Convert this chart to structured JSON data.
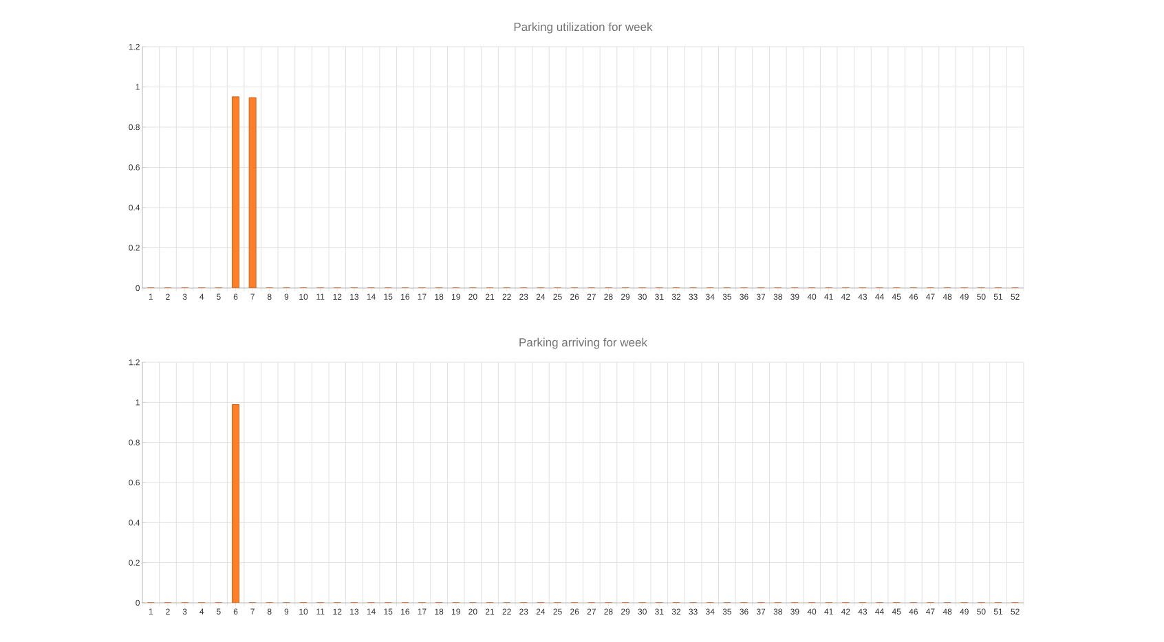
{
  "chart_data": [
    {
      "type": "bar",
      "title": "Parking utilization for week",
      "categories": [
        "1",
        "2",
        "3",
        "4",
        "5",
        "6",
        "7",
        "8",
        "9",
        "10",
        "11",
        "12",
        "13",
        "14",
        "15",
        "16",
        "17",
        "18",
        "19",
        "20",
        "21",
        "22",
        "23",
        "24",
        "25",
        "26",
        "27",
        "28",
        "29",
        "30",
        "31",
        "32",
        "33",
        "34",
        "35",
        "36",
        "37",
        "38",
        "39",
        "40",
        "41",
        "42",
        "43",
        "44",
        "45",
        "46",
        "47",
        "48",
        "49",
        "50",
        "51",
        "52"
      ],
      "values": [
        0,
        0,
        0,
        0,
        0,
        0.951,
        0.947,
        0,
        0,
        0,
        0,
        0,
        0,
        0,
        0,
        0,
        0,
        0,
        0,
        0,
        0,
        0,
        0,
        0,
        0,
        0,
        0,
        0,
        0,
        0,
        0,
        0,
        0,
        0,
        0,
        0,
        0,
        0,
        0,
        0,
        0,
        0,
        0,
        0,
        0,
        0,
        0,
        0,
        0,
        0,
        0,
        0
      ],
      "color": "#ff7f27",
      "ylim": [
        0,
        1.2
      ],
      "yticks": [
        0,
        0.2,
        0.4,
        0.6,
        0.8,
        1,
        1.2
      ],
      "grid": true
    },
    {
      "type": "bar",
      "title": "Parking arriving for week",
      "categories": [
        "1",
        "2",
        "3",
        "4",
        "5",
        "6",
        "7",
        "8",
        "9",
        "10",
        "11",
        "12",
        "13",
        "14",
        "15",
        "16",
        "17",
        "18",
        "19",
        "20",
        "21",
        "22",
        "23",
        "24",
        "25",
        "26",
        "27",
        "28",
        "29",
        "30",
        "31",
        "32",
        "33",
        "34",
        "35",
        "36",
        "37",
        "38",
        "39",
        "40",
        "41",
        "42",
        "43",
        "44",
        "45",
        "46",
        "47",
        "48",
        "49",
        "50",
        "51",
        "52"
      ],
      "values": [
        0,
        0,
        0,
        0,
        0,
        0.989,
        0,
        0,
        0,
        0,
        0,
        0,
        0,
        0,
        0,
        0,
        0,
        0,
        0,
        0,
        0,
        0,
        0,
        0,
        0,
        0,
        0,
        0,
        0,
        0,
        0,
        0,
        0,
        0,
        0,
        0,
        0,
        0,
        0,
        0,
        0,
        0,
        0,
        0,
        0,
        0,
        0,
        0,
        0,
        0,
        0,
        0
      ],
      "color": "#ff7f27",
      "ylim": [
        0,
        1.2
      ],
      "yticks": [
        0,
        0.2,
        0.4,
        0.6,
        0.8,
        1,
        1.2
      ],
      "grid": true
    }
  ]
}
